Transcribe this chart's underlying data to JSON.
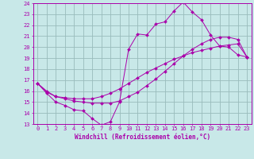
{
  "xlabel": "Windchill (Refroidissement éolien,°C)",
  "xlim": [
    -0.5,
    23.5
  ],
  "ylim": [
    13,
    24
  ],
  "xticks": [
    0,
    1,
    2,
    3,
    4,
    5,
    6,
    7,
    8,
    9,
    10,
    11,
    12,
    13,
    14,
    15,
    16,
    17,
    18,
    19,
    20,
    21,
    22,
    23
  ],
  "yticks": [
    13,
    14,
    15,
    16,
    17,
    18,
    19,
    20,
    21,
    22,
    23,
    24
  ],
  "bg_color": "#c8e8e8",
  "line_color": "#aa00aa",
  "grid_color": "#99bbbb",
  "line1_x": [
    0,
    1,
    2,
    3,
    4,
    5,
    6,
    7,
    8,
    9,
    10,
    11,
    12,
    13,
    14,
    15,
    16,
    17,
    18,
    19,
    20,
    21,
    22,
    23
  ],
  "line1_y": [
    16.7,
    15.8,
    15.0,
    14.7,
    14.3,
    14.2,
    13.5,
    12.9,
    13.2,
    15.0,
    19.8,
    21.2,
    21.1,
    22.1,
    22.3,
    23.3,
    24.1,
    23.2,
    22.5,
    21.1,
    20.1,
    20.0,
    19.3,
    19.1
  ],
  "line2_x": [
    0,
    1,
    2,
    3,
    4,
    5,
    6,
    7,
    8,
    9,
    10,
    11,
    12,
    13,
    14,
    15,
    16,
    17,
    18,
    19,
    20,
    21,
    22,
    23
  ],
  "line2_y": [
    16.7,
    15.9,
    15.5,
    15.4,
    15.3,
    15.3,
    15.3,
    15.5,
    15.8,
    16.2,
    16.7,
    17.2,
    17.7,
    18.1,
    18.5,
    18.9,
    19.2,
    19.5,
    19.7,
    19.9,
    20.1,
    20.2,
    20.3,
    19.1
  ],
  "line3_x": [
    0,
    1,
    2,
    3,
    4,
    5,
    6,
    7,
    8,
    9,
    10,
    11,
    12,
    13,
    14,
    15,
    16,
    17,
    18,
    19,
    20,
    21,
    22,
    23
  ],
  "line3_y": [
    16.7,
    16.0,
    15.5,
    15.3,
    15.1,
    15.0,
    14.9,
    14.9,
    14.9,
    15.1,
    15.5,
    15.9,
    16.5,
    17.1,
    17.8,
    18.5,
    19.2,
    19.8,
    20.3,
    20.7,
    20.9,
    20.9,
    20.7,
    19.1
  ],
  "tick_fontsize": 5.0,
  "xlabel_fontsize": 5.5
}
